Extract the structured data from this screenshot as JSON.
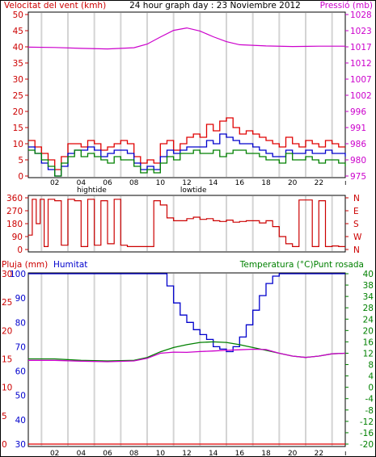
{
  "chart_data": [
    {
      "type": "line",
      "title": "24 hour graph day : 23 Noviembre 2012",
      "left_axis_label": "Velocitat del vent (kmh)",
      "right_axis_label": "Pressió (mb)",
      "left_ticks": [
        "0",
        "5",
        "10",
        "15",
        "20",
        "25",
        "30",
        "35",
        "40",
        "45",
        "50"
      ],
      "right_ticks": [
        "975",
        "980",
        "986",
        "991",
        "996",
        "1002",
        "1007",
        "1012",
        "1017",
        "1023",
        "1028"
      ],
      "ylim_left": [
        0,
        50
      ],
      "ylim_right": [
        975,
        1028
      ],
      "x_hours": [
        0,
        24
      ],
      "x_ticks": [
        "02",
        "04",
        "06",
        "08",
        "10",
        "12",
        "14",
        "16",
        "18",
        "20",
        "22"
      ],
      "tide_labels": [
        {
          "label": "hightide",
          "hour": 4.8
        },
        {
          "label": "lowtide",
          "hour": 12.5
        }
      ],
      "colors": {
        "gust": "#e00000",
        "avg": "#0000cc",
        "direction_green": "#008000",
        "pressure": "#cc00cc"
      },
      "series": [
        {
          "key": "pressure",
          "axis": "right",
          "x": [
            0,
            2,
            4,
            6,
            8,
            9,
            10,
            11,
            12,
            13,
            14,
            15,
            16,
            18,
            20,
            22,
            24
          ],
          "values": [
            1017.3,
            1017.2,
            1016.9,
            1016.7,
            1017.1,
            1018.3,
            1020.6,
            1022.8,
            1023.6,
            1022.6,
            1020.7,
            1019.1,
            1018.1,
            1017.7,
            1017.5,
            1017.6,
            1017.6
          ]
        },
        {
          "key": "gust",
          "axis": "left",
          "x": [
            0,
            0.5,
            1,
            1.5,
            2,
            2.5,
            3,
            3.5,
            4,
            4.5,
            5,
            5.5,
            6,
            6.5,
            7,
            7.5,
            8,
            8.5,
            9,
            9.5,
            10,
            10.5,
            11,
            11.5,
            12,
            12.5,
            13,
            13.5,
            14,
            14.5,
            15,
            15.5,
            16,
            16.5,
            17,
            17.5,
            18,
            18.5,
            19,
            19.5,
            20,
            20.5,
            21,
            21.5,
            22,
            22.5,
            23,
            23.5,
            24
          ],
          "values": [
            11,
            9,
            7,
            5,
            2,
            6,
            10,
            10,
            9,
            11,
            10,
            8,
            9,
            10,
            11,
            10,
            6,
            4,
            5,
            4,
            10,
            11,
            8,
            10,
            12,
            13,
            12,
            16,
            14,
            17,
            18,
            15,
            13,
            14,
            13,
            12,
            11,
            10,
            9,
            12,
            10,
            9,
            11,
            10,
            9,
            11,
            10,
            9,
            9
          ]
        },
        {
          "key": "avg",
          "axis": "left",
          "x": [
            0,
            0.5,
            1,
            1.5,
            2,
            2.5,
            3,
            3.5,
            4,
            4.5,
            5,
            5.5,
            6,
            6.5,
            7,
            7.5,
            8,
            8.5,
            9,
            9.5,
            10,
            10.5,
            11,
            11.5,
            12,
            12.5,
            13,
            13.5,
            14,
            14.5,
            15,
            15.5,
            16,
            16.5,
            17,
            17.5,
            18,
            18.5,
            19,
            19.5,
            20,
            20.5,
            21,
            21.5,
            22,
            22.5,
            23,
            23.5,
            24
          ],
          "values": [
            9,
            7,
            4,
            2,
            0,
            3,
            7,
            8,
            8,
            9,
            8,
            6,
            7,
            8,
            8,
            7,
            4,
            2,
            3,
            2,
            6,
            8,
            7,
            8,
            9,
            9,
            9,
            11,
            10,
            13,
            12,
            11,
            10,
            10,
            9,
            8,
            7,
            6,
            6,
            8,
            7,
            7,
            8,
            7,
            7,
            8,
            7,
            7,
            6
          ]
        },
        {
          "key": "direction_green",
          "axis": "left",
          "x": [
            0,
            0.5,
            1,
            1.5,
            2,
            2.5,
            3,
            3.5,
            4,
            4.5,
            5,
            5.5,
            6,
            6.5,
            7,
            7.5,
            8,
            8.5,
            9,
            9.5,
            10,
            10.5,
            11,
            11.5,
            12,
            12.5,
            13,
            13.5,
            14,
            14.5,
            15,
            15.5,
            16,
            16.5,
            17,
            17.5,
            18,
            18.5,
            19,
            19.5,
            20,
            20.5,
            21,
            21.5,
            22,
            22.5,
            23,
            23.5,
            24
          ],
          "values": [
            8,
            7,
            5,
            3,
            0,
            4,
            6,
            8,
            6,
            7,
            6,
            5,
            4,
            6,
            5,
            5,
            3,
            1,
            2,
            1,
            4,
            6,
            5,
            7,
            7,
            8,
            7,
            7,
            8,
            6,
            7,
            8,
            8,
            7,
            7,
            6,
            5,
            5,
            4,
            7,
            5,
            5,
            6,
            5,
            4,
            5,
            5,
            4,
            3
          ]
        }
      ]
    },
    {
      "type": "line",
      "ylim": [
        0,
        360
      ],
      "left_ticks": [
        "0",
        "90",
        "180",
        "270",
        "360"
      ],
      "right_ticks": [
        "N",
        "E",
        "S",
        "W",
        "N"
      ],
      "series": [
        {
          "key": "wind_direction",
          "x": [
            0,
            0.3,
            0.6,
            0.9,
            1.2,
            1.5,
            2.0,
            2.5,
            3.0,
            3.5,
            4.0,
            4.5,
            5.0,
            5.5,
            6.0,
            6.5,
            7.0,
            7.5,
            8.0,
            8.5,
            9.0,
            9.5,
            10.0,
            10.5,
            11.0,
            11.5,
            12.0,
            12.5,
            13.0,
            13.5,
            14.0,
            14.5,
            15.0,
            15.5,
            16.0,
            16.5,
            17.0,
            17.5,
            18.0,
            18.5,
            19.0,
            19.5,
            20.0,
            20.5,
            21.0,
            21.5,
            22.0,
            22.5,
            23.0,
            23.5,
            24.0
          ],
          "values": [
            100,
            350,
            180,
            350,
            20,
            350,
            340,
            30,
            350,
            340,
            20,
            350,
            30,
            340,
            40,
            350,
            30,
            20,
            20,
            20,
            20,
            340,
            310,
            220,
            200,
            200,
            215,
            225,
            210,
            215,
            200,
            195,
            205,
            190,
            195,
            200,
            200,
            185,
            200,
            160,
            90,
            40,
            20,
            345,
            345,
            20,
            340,
            20,
            25,
            20,
            20
          ]
        }
      ]
    },
    {
      "type": "line",
      "left_axis_label": "Pluja (mm)",
      "humidity_label": "Humitat",
      "right_axis_label": "Temperatura (°C)Punt rosada",
      "rain_ticks": [
        "0",
        "5",
        "10",
        "15",
        "20",
        "25",
        "30"
      ],
      "humidity_ticks": [
        "30",
        "40",
        "50",
        "60",
        "70",
        "80",
        "90",
        "100"
      ],
      "right_ticks": [
        "-20",
        "-16",
        "-12",
        "-8",
        "-4",
        "0",
        "4",
        "8",
        "12",
        "16",
        "20",
        "24",
        "28",
        "34",
        "38",
        "40"
      ],
      "ylim_humidity": [
        30,
        100
      ],
      "ylim_temp": [
        -20,
        40
      ],
      "colors": {
        "rain": "#e00000",
        "humidity": "#0000cc",
        "temperature": "#008000",
        "dewpoint": "#cc00cc"
      },
      "series": [
        {
          "key": "humidity",
          "x": [
            0,
            2,
            4,
            6,
            8,
            10,
            10.5,
            11,
            11.5,
            12,
            12.5,
            13,
            13.5,
            14,
            14.5,
            15,
            15.5,
            16,
            16.5,
            17,
            17.5,
            18,
            18.5,
            19,
            20,
            22,
            24
          ],
          "values": [
            100,
            100,
            100,
            100,
            100,
            100,
            95,
            88,
            83,
            80,
            77,
            75,
            73,
            70,
            69,
            68,
            70,
            74,
            79,
            85,
            91,
            96,
            99,
            100,
            100,
            100,
            100
          ]
        },
        {
          "key": "temperature",
          "x": [
            0,
            2,
            4,
            6,
            8,
            9,
            10,
            11,
            12,
            13,
            14,
            15,
            16,
            17,
            18,
            19,
            20,
            21,
            22,
            23,
            24
          ],
          "values": [
            10,
            10,
            9.5,
            9.3,
            9.5,
            10.5,
            12.5,
            14.0,
            15.0,
            15.8,
            16.0,
            15.8,
            15.0,
            14.0,
            13.0,
            12.0,
            11.0,
            10.5,
            11.0,
            11.8,
            12.0
          ]
        },
        {
          "key": "dewpoint",
          "x": [
            0,
            2,
            4,
            6,
            8,
            9,
            10,
            11,
            12,
            13,
            14,
            15,
            16,
            17,
            18,
            19,
            20,
            21,
            22,
            23,
            24
          ],
          "values": [
            9.5,
            9.5,
            9.2,
            9.0,
            9.3,
            10.2,
            12.0,
            12.4,
            12.3,
            12.6,
            12.8,
            13.0,
            13.2,
            13.4,
            13.3,
            12.0,
            11.0,
            10.5,
            11.0,
            11.8,
            12.0
          ]
        },
        {
          "key": "rain",
          "x": [
            0,
            24
          ],
          "values": [
            0,
            0
          ]
        }
      ]
    }
  ]
}
